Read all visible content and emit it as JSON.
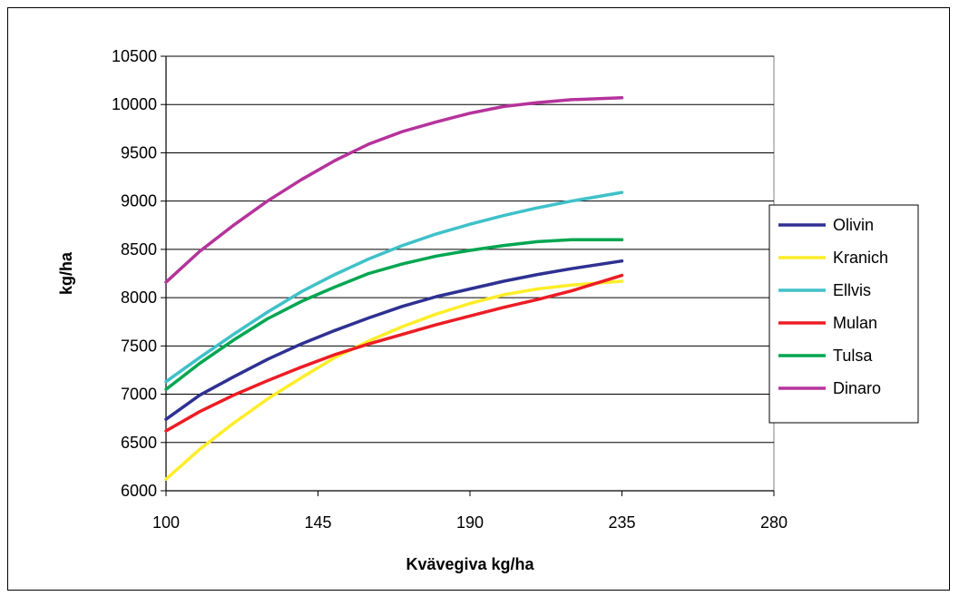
{
  "chart_data": {
    "type": "line",
    "title": "",
    "xlabel": "Kvävegiva kg/ha",
    "ylabel": "kg/ha",
    "xlim": [
      100,
      280
    ],
    "ylim": [
      6000,
      10500
    ],
    "xticks": [
      100,
      145,
      190,
      235,
      280
    ],
    "yticks": [
      6000,
      6500,
      7000,
      7500,
      8000,
      8500,
      9000,
      9500,
      10000,
      10500
    ],
    "grid": "horizontal",
    "legend_position": "right",
    "x": [
      100,
      110,
      120,
      130,
      140,
      150,
      160,
      170,
      180,
      190,
      200,
      210,
      220,
      235
    ],
    "series": [
      {
        "name": "Olivin",
        "color": "#2e3192",
        "values": [
          6740,
          6990,
          7180,
          7360,
          7520,
          7660,
          7790,
          7910,
          8010,
          8090,
          8170,
          8240,
          8300,
          8380
        ]
      },
      {
        "name": "Kranich",
        "color": "#ffed29",
        "values": [
          6120,
          6430,
          6700,
          6950,
          7170,
          7380,
          7550,
          7700,
          7830,
          7940,
          8030,
          8090,
          8130,
          8170
        ]
      },
      {
        "name": "Ellvis",
        "color": "#3fc1c9",
        "values": [
          7130,
          7380,
          7620,
          7850,
          8060,
          8240,
          8400,
          8540,
          8660,
          8760,
          8850,
          8930,
          9000,
          9090
        ]
      },
      {
        "name": "Mulan",
        "color": "#ed1c24",
        "values": [
          6620,
          6820,
          6990,
          7140,
          7280,
          7410,
          7520,
          7620,
          7720,
          7810,
          7900,
          7980,
          8070,
          8230
        ]
      },
      {
        "name": "Tulsa",
        "color": "#00a651",
        "values": [
          7050,
          7320,
          7560,
          7780,
          7960,
          8110,
          8250,
          8350,
          8430,
          8490,
          8540,
          8580,
          8600,
          8600
        ]
      },
      {
        "name": "Dinaro",
        "color": "#b5339b",
        "values": [
          8160,
          8480,
          8750,
          9000,
          9220,
          9420,
          9590,
          9720,
          9820,
          9910,
          9980,
          10020,
          10050,
          10070
        ]
      }
    ]
  }
}
